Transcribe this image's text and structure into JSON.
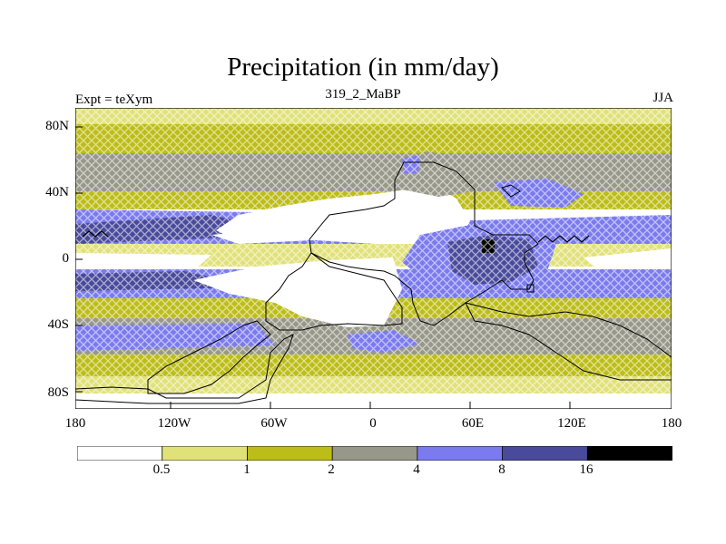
{
  "title": "Precipitation (in mm/day)",
  "subtitle_left": "Expt = teXym",
  "subtitle_center": "319_2_MaBP",
  "subtitle_right": "JJA",
  "y_ticks": [
    "80N",
    "40N",
    "0",
    "40S",
    "80S"
  ],
  "x_ticks": [
    "180",
    "120W",
    "60W",
    "0",
    "60E",
    "120E",
    "180"
  ],
  "colorbar": {
    "labels": [
      "0.5",
      "1",
      "2",
      "4",
      "8",
      "16"
    ],
    "colors": [
      "#ffffff",
      "#e1e17a",
      "#bdbd19",
      "#98988a",
      "#7b7bef",
      "#4a4a9c",
      "#000000"
    ]
  },
  "colors": {
    "lt05": "#ffffff",
    "c05_1": "#e1e17a",
    "c1_2": "#bdbd19",
    "c2_4": "#98988a",
    "c4_8": "#7b7bef",
    "c8_16": "#4a4a9c",
    "gt16": "#000000"
  }
}
